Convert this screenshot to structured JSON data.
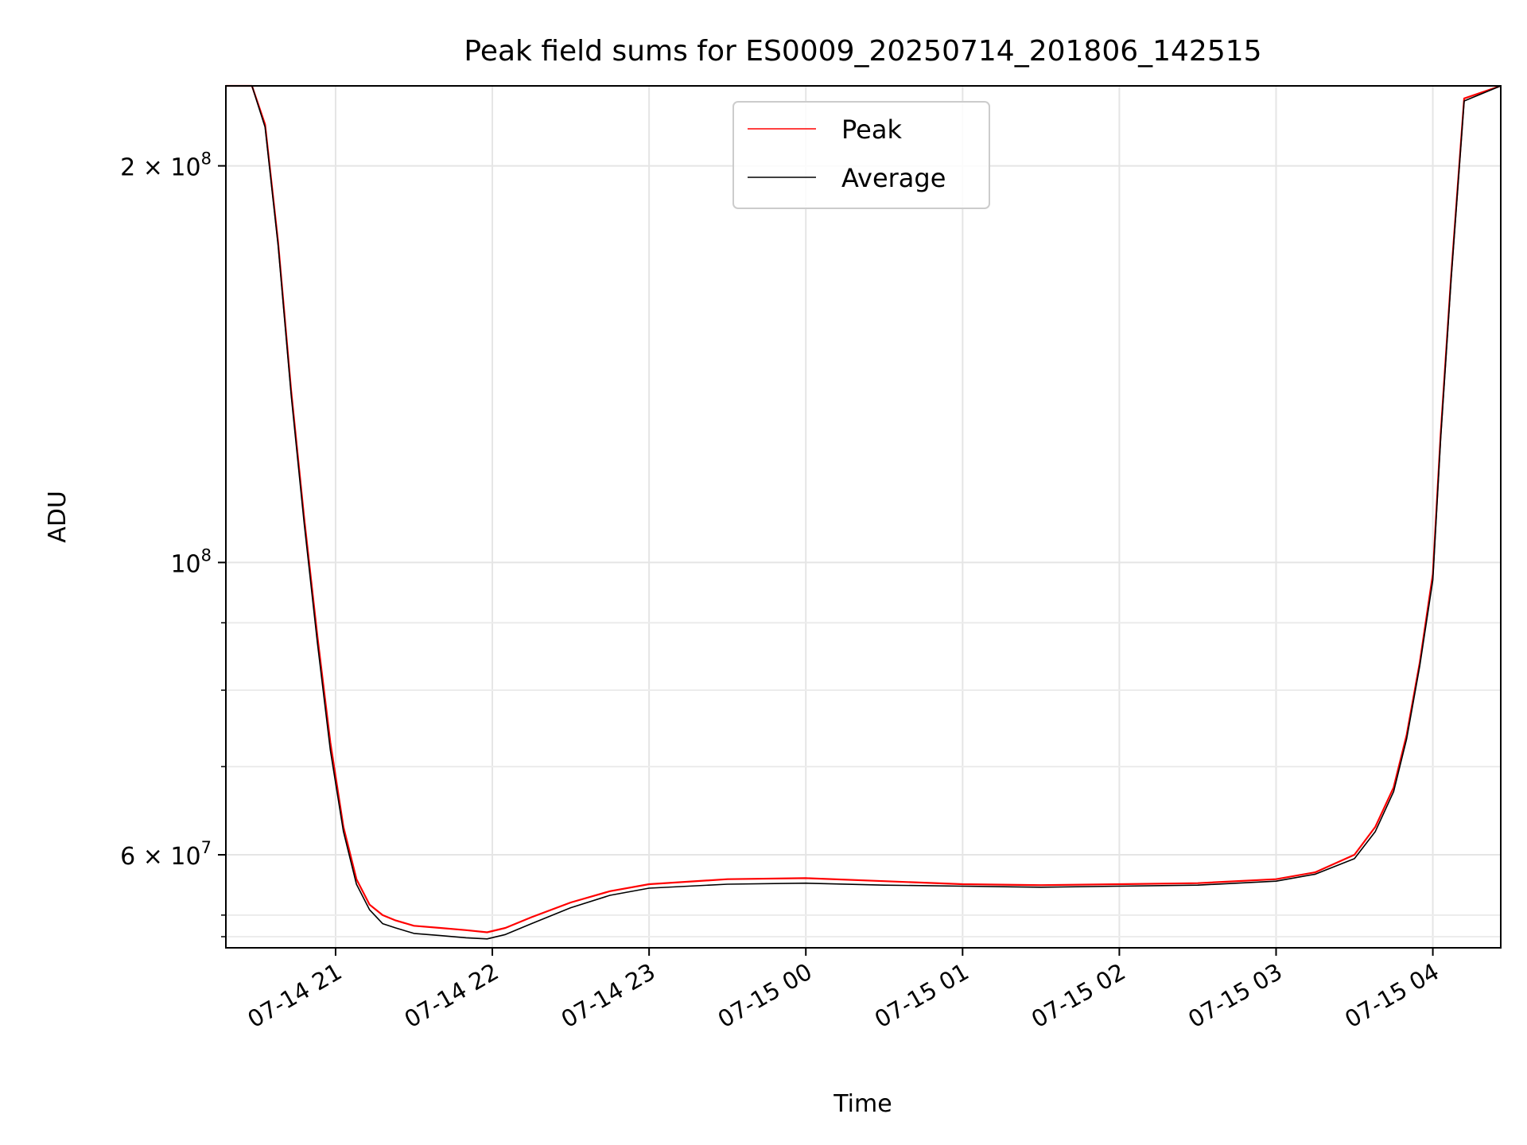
{
  "chart_data": {
    "type": "line",
    "title": "Peak field sums for ES0009_20250714_201806_142515",
    "xlabel": "Time",
    "ylabel": "ADU",
    "x_range": [
      "2025-07-14T20:18",
      "2025-07-15T04:26"
    ],
    "y_scale": "log",
    "ylim": [
      51000000,
      230000000
    ],
    "grid": true,
    "legend_position": "top-center",
    "x_ticks": [
      {
        "x": "2025-07-14T21:00",
        "label": "07-14 21"
      },
      {
        "x": "2025-07-14T22:00",
        "label": "07-14 22"
      },
      {
        "x": "2025-07-14T23:00",
        "label": "07-14 23"
      },
      {
        "x": "2025-07-15T00:00",
        "label": "07-15 00"
      },
      {
        "x": "2025-07-15T01:00",
        "label": "07-15 01"
      },
      {
        "x": "2025-07-15T02:00",
        "label": "07-15 02"
      },
      {
        "x": "2025-07-15T03:00",
        "label": "07-15 03"
      },
      {
        "x": "2025-07-15T04:00",
        "label": "07-15 04"
      }
    ],
    "y_ticks": [
      {
        "value": 200000000,
        "base": "2 × 10",
        "exp": "8"
      },
      {
        "value": 100000000,
        "base": "10",
        "exp": "8"
      },
      {
        "value": 60000000,
        "base": "6 × 10",
        "exp": "7"
      }
    ],
    "y_minor_ticks": [
      52000000,
      54000000,
      70000000,
      80000000,
      90000000
    ],
    "series": [
      {
        "name": "Peak",
        "color": "#ff0000",
        "x": [
          "2025-07-14T20:18",
          "2025-07-14T20:28",
          "2025-07-14T20:33",
          "2025-07-14T20:38",
          "2025-07-14T20:43",
          "2025-07-14T20:48",
          "2025-07-14T20:53",
          "2025-07-14T20:58",
          "2025-07-14T21:03",
          "2025-07-14T21:08",
          "2025-07-14T21:13",
          "2025-07-14T21:18",
          "2025-07-14T21:23",
          "2025-07-14T21:30",
          "2025-07-14T21:40",
          "2025-07-14T21:50",
          "2025-07-14T21:58",
          "2025-07-14T22:05",
          "2025-07-14T22:15",
          "2025-07-14T22:30",
          "2025-07-14T22:45",
          "2025-07-14T23:00",
          "2025-07-14T23:30",
          "2025-07-15T00:00",
          "2025-07-15T00:30",
          "2025-07-15T01:00",
          "2025-07-15T01:30",
          "2025-07-15T02:00",
          "2025-07-15T02:30",
          "2025-07-15T03:00",
          "2025-07-15T03:15",
          "2025-07-15T03:30",
          "2025-07-15T03:38",
          "2025-07-15T03:45",
          "2025-07-15T03:50",
          "2025-07-15T03:55",
          "2025-07-15T04:00",
          "2025-07-15T04:03",
          "2025-07-15T04:07",
          "2025-07-15T04:12",
          "2025-07-15T04:26"
        ],
        "y": [
          230000000,
          230000000,
          215000000,
          175000000,
          135000000,
          108000000,
          88000000,
          73000000,
          63000000,
          57500000,
          55000000,
          54000000,
          53500000,
          53000000,
          52800000,
          52600000,
          52400000,
          52800000,
          53800000,
          55200000,
          56300000,
          57000000,
          57500000,
          57600000,
          57300000,
          57000000,
          56900000,
          57000000,
          57100000,
          57500000,
          58200000,
          60000000,
          63000000,
          67500000,
          74000000,
          84000000,
          98000000,
          125000000,
          165000000,
          225000000,
          230000000
        ]
      },
      {
        "name": "Average",
        "color": "#000000",
        "x": [
          "2025-07-14T20:18",
          "2025-07-14T20:28",
          "2025-07-14T20:33",
          "2025-07-14T20:38",
          "2025-07-14T20:43",
          "2025-07-14T20:48",
          "2025-07-14T20:53",
          "2025-07-14T20:58",
          "2025-07-14T21:03",
          "2025-07-14T21:08",
          "2025-07-14T21:13",
          "2025-07-14T21:18",
          "2025-07-14T21:23",
          "2025-07-14T21:30",
          "2025-07-14T21:40",
          "2025-07-14T21:50",
          "2025-07-14T21:58",
          "2025-07-14T22:05",
          "2025-07-14T22:15",
          "2025-07-14T22:30",
          "2025-07-14T22:45",
          "2025-07-14T23:00",
          "2025-07-14T23:30",
          "2025-07-15T00:00",
          "2025-07-15T00:30",
          "2025-07-15T01:00",
          "2025-07-15T01:30",
          "2025-07-15T02:00",
          "2025-07-15T02:30",
          "2025-07-15T03:00",
          "2025-07-15T03:15",
          "2025-07-15T03:30",
          "2025-07-15T03:38",
          "2025-07-15T03:45",
          "2025-07-15T03:50",
          "2025-07-15T03:55",
          "2025-07-15T04:00",
          "2025-07-15T04:03",
          "2025-07-15T04:07",
          "2025-07-15T04:12",
          "2025-07-15T04:26"
        ],
        "y": [
          230000000,
          230000000,
          214000000,
          174000000,
          134000000,
          107000000,
          87000000,
          72000000,
          62500000,
          57000000,
          54500000,
          53200000,
          52800000,
          52300000,
          52100000,
          51900000,
          51800000,
          52200000,
          53200000,
          54700000,
          55900000,
          56600000,
          57000000,
          57100000,
          56900000,
          56800000,
          56700000,
          56800000,
          56900000,
          57300000,
          58000000,
          59600000,
          62500000,
          67000000,
          73500000,
          83500000,
          97000000,
          124000000,
          164000000,
          224000000,
          230000000
        ]
      }
    ]
  }
}
